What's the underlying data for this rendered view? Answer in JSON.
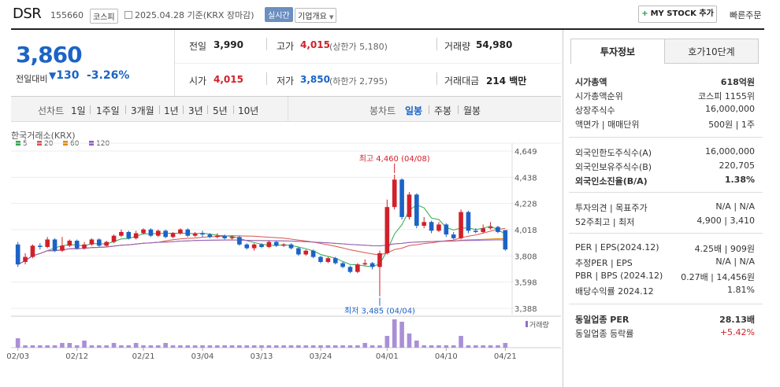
{
  "header": {
    "name": "DSR",
    "code": "155660",
    "market": "코스피",
    "date_text": "2025.04.28  기준(KRX 장마감)",
    "realtime": "실시간",
    "company_overview": "기업개요",
    "my_stock": "MY STOCK 추가",
    "quick_order": "빠른주문"
  },
  "price": {
    "current": "3,860",
    "change_label": "전일대비",
    "change_value": "130",
    "change_pct": "-3.26%"
  },
  "quote": {
    "prev_label": "전일",
    "prev": "3,990",
    "high_label": "고가",
    "high": "4,015",
    "high_sub": "(상한가 5,180)",
    "volume_label": "거래량",
    "volume": "54,980",
    "open_label": "시가",
    "open": "4,015",
    "low_label": "저가",
    "low": "3,850",
    "low_sub": "(하한가 2,795)",
    "amount_label": "거래대금",
    "amount": "214 백만"
  },
  "chart_tabs": {
    "line_chart": "선차트",
    "periods": [
      "1일",
      "1주일",
      "3개월",
      "1년",
      "3년",
      "5년",
      "10년"
    ],
    "candle_chart": "봉차트",
    "candle_periods": [
      "일봉",
      "주봉",
      "월봉"
    ]
  },
  "chart_data": {
    "type": "candlestick",
    "exchange_label": "한국거래소(KRX)",
    "ma_legend": [
      {
        "name": "5",
        "color": "#2fa84f"
      },
      {
        "name": "20",
        "color": "#d9534f"
      },
      {
        "name": "60",
        "color": "#e58a00"
      },
      {
        "name": "120",
        "color": "#8e5cc9"
      }
    ],
    "y_ticks": [
      "4,649",
      "4,438",
      "4,228",
      "4,018",
      "3,808",
      "3,598",
      "3,388"
    ],
    "ylim": [
      3388,
      4649
    ],
    "x_ticks": [
      "02/03",
      "02/12",
      "02/21",
      "03/04",
      "03/13",
      "03/24",
      "04/01",
      "04/10",
      "04/21"
    ],
    "high_annotation": "최고 4,460 (04/08)",
    "low_annotation": "최저 3,485 (04/04)",
    "volume_label": "거래량",
    "candles": [
      [
        3900,
        3740,
        3920,
        3720
      ],
      [
        3760,
        3800,
        3830,
        3740
      ],
      [
        3800,
        3890,
        3900,
        3790
      ],
      [
        3890,
        3880,
        3910,
        3860
      ],
      [
        3880,
        3940,
        3960,
        3870
      ],
      [
        3940,
        3850,
        3950,
        3840
      ],
      [
        3850,
        3890,
        3960,
        3840
      ],
      [
        3890,
        3930,
        3940,
        3880
      ],
      [
        3930,
        3870,
        3940,
        3860
      ],
      [
        3870,
        3900,
        3920,
        3860
      ],
      [
        3900,
        3940,
        3950,
        3890
      ],
      [
        3940,
        3890,
        3950,
        3880
      ],
      [
        3890,
        3920,
        3930,
        3880
      ],
      [
        3920,
        3970,
        3980,
        3910
      ],
      [
        3970,
        4000,
        4020,
        3960
      ],
      [
        4000,
        3950,
        4010,
        3940
      ],
      [
        3950,
        3990,
        4010,
        3940
      ],
      [
        3990,
        4020,
        4030,
        3980
      ],
      [
        4020,
        3970,
        4030,
        3960
      ],
      [
        3970,
        4010,
        4020,
        3960
      ],
      [
        4010,
        3960,
        4020,
        3950
      ],
      [
        3960,
        3990,
        4000,
        3950
      ],
      [
        3990,
        4020,
        4030,
        3980
      ],
      [
        4020,
        3970,
        4030,
        3960
      ],
      [
        3970,
        3990,
        4000,
        3960
      ],
      [
        3990,
        3980,
        4010,
        3960
      ],
      [
        3980,
        3960,
        3990,
        3950
      ],
      [
        3960,
        3970,
        3990,
        3950
      ],
      [
        3970,
        3950,
        3980,
        3940
      ],
      [
        3950,
        3960,
        3970,
        3940
      ],
      [
        3960,
        3900,
        3970,
        3890
      ],
      [
        3900,
        3870,
        3910,
        3860
      ],
      [
        3870,
        3900,
        3910,
        3850
      ],
      [
        3900,
        3880,
        3910,
        3870
      ],
      [
        3880,
        3920,
        3930,
        3870
      ],
      [
        3920,
        3890,
        3930,
        3880
      ],
      [
        3890,
        3900,
        3910,
        3880
      ],
      [
        3900,
        3870,
        3910,
        3860
      ],
      [
        3870,
        3820,
        3880,
        3810
      ],
      [
        3820,
        3850,
        3860,
        3810
      ],
      [
        3850,
        3800,
        3860,
        3790
      ],
      [
        3800,
        3760,
        3810,
        3750
      ],
      [
        3760,
        3790,
        3800,
        3750
      ],
      [
        3790,
        3750,
        3800,
        3740
      ],
      [
        3750,
        3720,
        3760,
        3710
      ],
      [
        3720,
        3680,
        3730,
        3670
      ],
      [
        3680,
        3740,
        3750,
        3670
      ],
      [
        3740,
        3750,
        3780,
        3730
      ],
      [
        3750,
        3720,
        3760,
        3700
      ],
      [
        3720,
        3830,
        3850,
        3485
      ],
      [
        3830,
        4200,
        4260,
        3820
      ],
      [
        4200,
        4420,
        4460,
        4180
      ],
      [
        4420,
        4120,
        4430,
        4100
      ],
      [
        4120,
        4300,
        4320,
        4100
      ],
      [
        4300,
        4050,
        4310,
        4030
      ],
      [
        4050,
        4080,
        4120,
        4030
      ],
      [
        4080,
        4010,
        4090,
        3990
      ],
      [
        4010,
        4060,
        4080,
        4000
      ],
      [
        4060,
        3980,
        4070,
        3960
      ],
      [
        3980,
        3950,
        4000,
        3940
      ],
      [
        3950,
        4160,
        4180,
        3940
      ],
      [
        4160,
        4010,
        4170,
        3990
      ],
      [
        4010,
        4000,
        4030,
        3990
      ],
      [
        4000,
        4030,
        4060,
        3990
      ],
      [
        4030,
        4040,
        4080,
        4020
      ],
      [
        4040,
        4000,
        4050,
        3990
      ],
      [
        4015,
        3860,
        4015,
        3850
      ]
    ],
    "volumes": [
      4,
      1,
      1,
      1,
      1,
      1,
      2,
      2,
      1,
      3,
      1,
      1,
      1,
      2,
      1,
      1,
      2,
      1,
      1,
      1,
      2,
      1,
      1,
      1,
      1,
      1,
      1,
      1,
      1,
      1,
      1,
      1,
      1,
      1,
      1,
      1,
      1,
      1,
      1,
      1,
      1,
      1,
      1,
      1,
      1,
      1,
      1,
      2,
      1,
      1,
      5,
      12,
      11,
      6,
      3,
      1,
      1,
      1,
      1,
      1,
      5,
      1,
      1,
      1,
      1,
      1,
      2
    ]
  },
  "investment": {
    "tab_info": "투자정보",
    "tab_orderbook": "호가10단계",
    "rows1": [
      {
        "label": "시가총액",
        "value": "618억원",
        "bold": true
      },
      {
        "label": "시가총액순위",
        "value": "코스피 1155위"
      },
      {
        "label": "상장주식수",
        "value": "16,000,000"
      },
      {
        "label": "액면가 | 매매단위",
        "value": "500원 | 1주"
      }
    ],
    "rows2": [
      {
        "label": "외국인한도주식수(A)",
        "value": "16,000,000"
      },
      {
        "label": "외국인보유주식수(B)",
        "value": "220,705"
      },
      {
        "label": "외국인소진율(B/A)",
        "value": "1.38%",
        "bold": true
      }
    ],
    "rows3": [
      {
        "label": "투자의견 | 목표주가",
        "value": "N/A | N/A"
      },
      {
        "label": "52주최고 | 최저",
        "value": "4,900 | 3,410"
      }
    ],
    "rows4": [
      {
        "label": "PER | EPS(2024.12)",
        "value": "4.25배 | 909원"
      },
      {
        "label": "추정PER | EPS",
        "value": "N/A | N/A"
      },
      {
        "label": "PBR | BPS (2024.12)",
        "value": "0.27배 | 14,456원"
      },
      {
        "label": "배당수익률 2024.12",
        "value": "1.81%"
      }
    ],
    "rows5": [
      {
        "label": "동일업종 PER",
        "value": "28.13배",
        "bold": true
      },
      {
        "label": "동일업종 등락률",
        "value": "+5.42%",
        "red": true
      }
    ]
  }
}
